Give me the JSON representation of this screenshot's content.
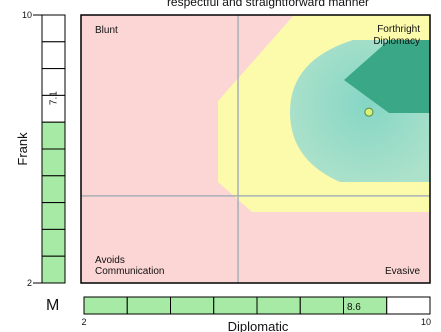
{
  "chart_data": {
    "type": "scatter",
    "title": "respectful and straightforward manner",
    "xlabel": "Diplomatic",
    "ylabel": "Frank",
    "xlim": [
      2,
      10
    ],
    "ylim": [
      2,
      10
    ],
    "x_ticks": [
      "2",
      "10"
    ],
    "y_ticks": [
      "2",
      "10"
    ],
    "point": {
      "x": 8.6,
      "y": 7.1
    },
    "x_value_label": "8.6",
    "y_value_label": "7.1",
    "x_gauge_segments": 8,
    "y_gauge_segments": 10,
    "gauge_prefix": "M",
    "crosshair": {
      "x": 5.6,
      "y": 4.6
    },
    "quadrant_labels": {
      "top_left": "Blunt",
      "top_right": [
        "Forthright",
        "Diplomacy"
      ],
      "bottom_left": [
        "Avoids",
        "Communication"
      ],
      "bottom_right": "Evasive"
    },
    "colors": {
      "background": "#fcd5d5",
      "yellow_zone": "#fbfbab",
      "teal_zone": "#8fd8c8",
      "dark_teal_zone": "#3aa887",
      "gauge_fill": "#a6eaa5",
      "point": "#d9f37a",
      "crosshair": "#a8b0b8"
    }
  }
}
